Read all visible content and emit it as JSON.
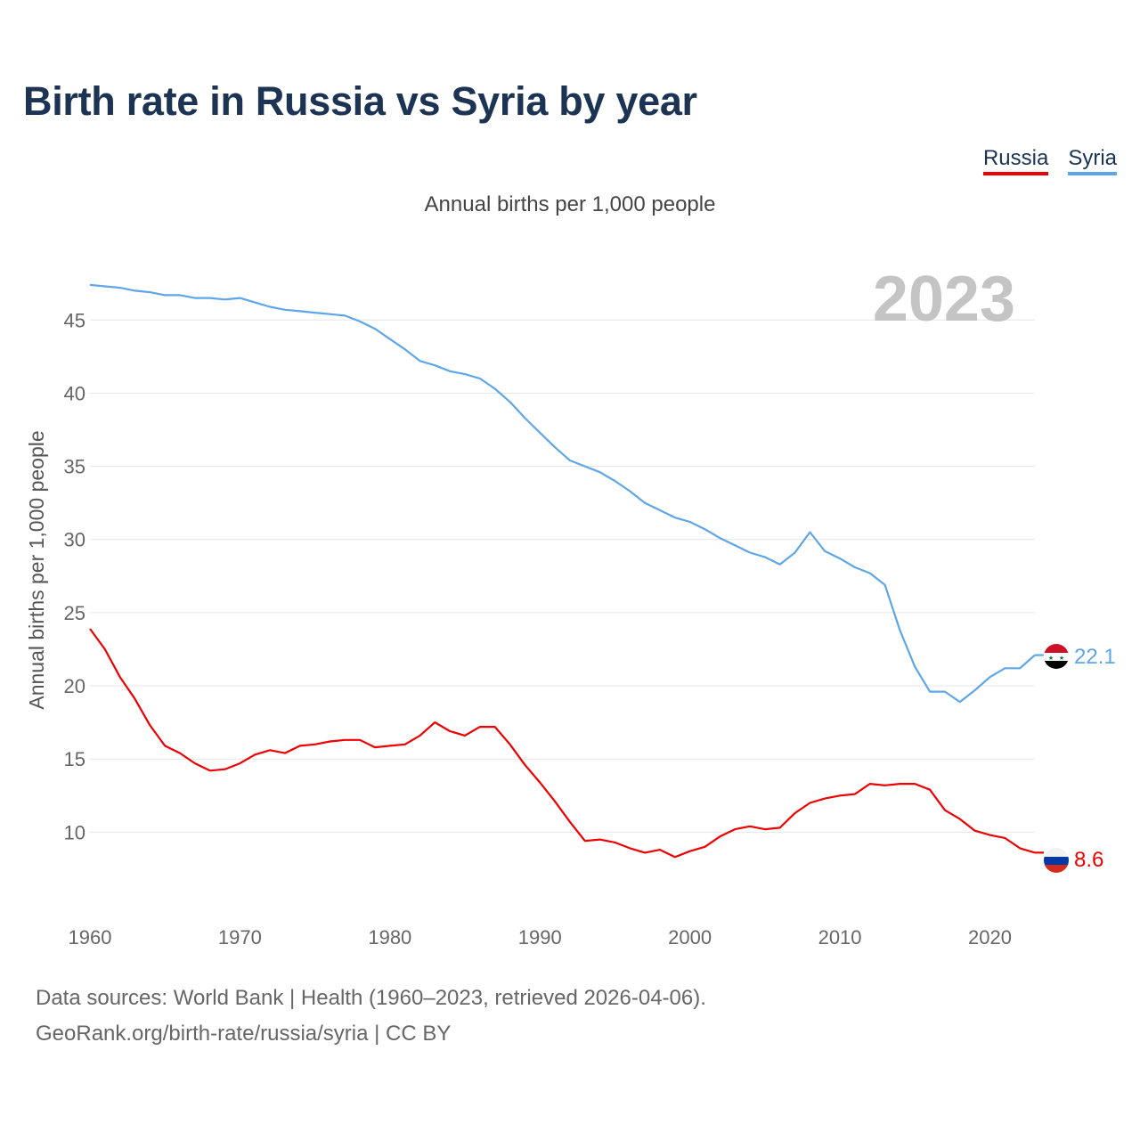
{
  "title": "Birth rate in Russia vs Syria by year",
  "legend": [
    {
      "label": "Russia",
      "color": "#ee0000"
    },
    {
      "label": "Syria",
      "color": "#5ea6e8"
    }
  ],
  "subtitle": "Annual births per 1,000 people",
  "year_label": "2023",
  "source": {
    "line1": "Data sources: World Bank | Health (1960–2023, retrieved 2026-04-06).",
    "line2": "GeoRank.org/birth-rate/russia/syria | CC BY"
  },
  "chart_data": {
    "type": "line",
    "title": "Birth rate in Russia vs Syria by year",
    "subtitle": "Annual births per 1,000 people",
    "xlabel": "",
    "ylabel": "Annual births per 1,000 people",
    "xlim": [
      1960,
      2023
    ],
    "ylim": [
      5.7,
      48
    ],
    "xticks": [
      1960,
      1970,
      1980,
      1990,
      2000,
      2010,
      2020
    ],
    "yticks": [
      10,
      15,
      20,
      25,
      30,
      35,
      40,
      45
    ],
    "grid": true,
    "x_start": 1960,
    "series": [
      {
        "name": "Russia",
        "color": "#ee0000",
        "end_label": "8.6",
        "flag": "russia",
        "values": [
          23.9,
          22.5,
          20.6,
          19.1,
          17.3,
          15.9,
          15.4,
          14.7,
          14.2,
          14.3,
          14.7,
          15.3,
          15.6,
          15.4,
          15.9,
          16.0,
          16.2,
          16.3,
          16.3,
          15.8,
          15.9,
          16.0,
          16.6,
          17.5,
          16.9,
          16.6,
          17.2,
          17.2,
          16.0,
          14.6,
          13.4,
          12.1,
          10.7,
          9.4,
          9.5,
          9.3,
          8.9,
          8.6,
          8.8,
          8.3,
          8.7,
          9.0,
          9.7,
          10.2,
          10.4,
          10.2,
          10.3,
          11.3,
          12.0,
          12.3,
          12.5,
          12.6,
          13.3,
          13.2,
          13.3,
          13.3,
          12.9,
          11.5,
          10.9,
          10.1,
          9.8,
          9.6,
          8.9,
          8.6
        ]
      },
      {
        "name": "Syria",
        "color": "#5ea6e8",
        "end_label": "22.1",
        "flag": "syria",
        "values": [
          47.4,
          47.3,
          47.2,
          47.0,
          46.9,
          46.7,
          46.7,
          46.5,
          46.5,
          46.4,
          46.5,
          46.2,
          45.9,
          45.7,
          45.6,
          45.5,
          45.4,
          45.3,
          44.9,
          44.4,
          43.7,
          43.0,
          42.2,
          41.9,
          41.5,
          41.3,
          41.0,
          40.3,
          39.4,
          38.3,
          37.3,
          36.3,
          35.4,
          35.0,
          34.6,
          34.0,
          33.3,
          32.5,
          32.0,
          31.5,
          31.2,
          30.7,
          30.1,
          29.6,
          29.1,
          28.8,
          28.3,
          29.1,
          30.5,
          29.2,
          28.7,
          28.1,
          27.7,
          26.9,
          23.8,
          21.3,
          19.6,
          19.6,
          18.9,
          19.7,
          20.6,
          21.2,
          21.2,
          22.1
        ]
      }
    ]
  }
}
